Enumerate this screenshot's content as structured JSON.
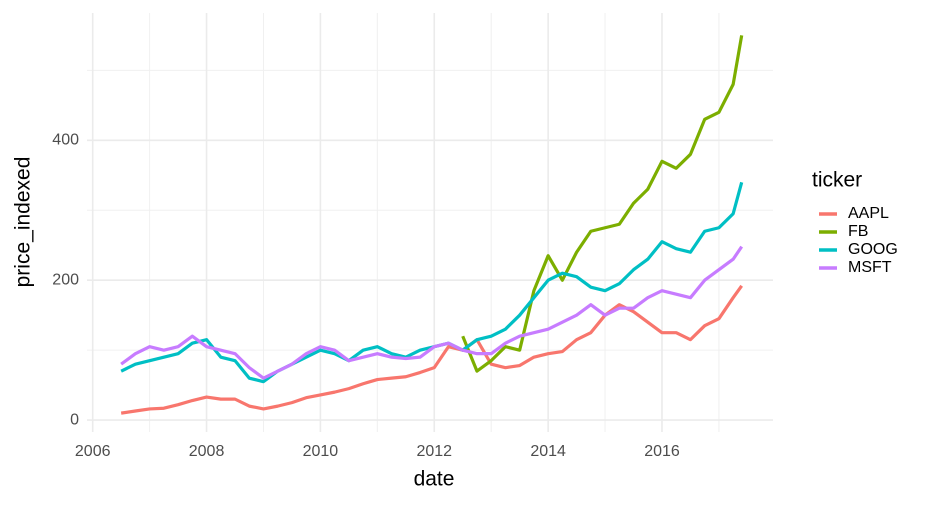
{
  "chart_data": {
    "type": "line",
    "x_label": "date",
    "y_label": "price_indexed",
    "legend_title": "ticker",
    "legend_position": "right",
    "grid": true,
    "x": [
      2006.5,
      2006.75,
      2007,
      2007.25,
      2007.5,
      2007.75,
      2008,
      2008.25,
      2008.5,
      2008.75,
      2009,
      2009.25,
      2009.5,
      2009.75,
      2010,
      2010.25,
      2010.5,
      2010.75,
      2011,
      2011.25,
      2011.5,
      2011.75,
      2012,
      2012.25,
      2012.5,
      2012.75,
      2013,
      2013.25,
      2013.5,
      2013.75,
      2014,
      2014.25,
      2014.5,
      2014.75,
      2015,
      2015.25,
      2015.5,
      2015.75,
      2016,
      2016.25,
      2016.5,
      2016.75,
      2017,
      2017.25,
      2017.4
    ],
    "xlim": [
      2005.9,
      2017.95
    ],
    "xticks": [
      2006,
      2008,
      2010,
      2012,
      2014,
      2016
    ],
    "ylim": [
      -17,
      582
    ],
    "yticks": [
      0,
      200,
      400
    ],
    "series": [
      {
        "name": "AAPL",
        "color": "#F8766D",
        "values": [
          10,
          13,
          16,
          17,
          22,
          28,
          33,
          30,
          30,
          20,
          16,
          20,
          25,
          32,
          36,
          40,
          45,
          52,
          58,
          60,
          62,
          68,
          75,
          105,
          100,
          115,
          80,
          75,
          78,
          90,
          95,
          98,
          115,
          125,
          150,
          165,
          155,
          140,
          125,
          125,
          115,
          135,
          145,
          175,
          192
        ]
      },
      {
        "name": "FB",
        "color": "#7CAE00",
        "values": [
          null,
          null,
          null,
          null,
          null,
          null,
          null,
          null,
          null,
          null,
          null,
          null,
          null,
          null,
          null,
          null,
          null,
          null,
          null,
          null,
          null,
          null,
          null,
          null,
          120,
          70,
          85,
          105,
          100,
          185,
          235,
          200,
          240,
          270,
          275,
          280,
          310,
          330,
          370,
          360,
          380,
          430,
          440,
          480,
          550
        ]
      },
      {
        "name": "GOOG",
        "color": "#00BFC4",
        "values": [
          70,
          80,
          85,
          90,
          95,
          110,
          115,
          90,
          85,
          60,
          55,
          70,
          80,
          90,
          100,
          95,
          85,
          100,
          105,
          95,
          90,
          100,
          105,
          110,
          100,
          115,
          120,
          130,
          150,
          175,
          200,
          210,
          205,
          190,
          185,
          195,
          215,
          230,
          255,
          245,
          240,
          270,
          275,
          295,
          340
        ]
      },
      {
        "name": "MSFT",
        "color": "#C77CFF",
        "values": [
          80,
          95,
          105,
          100,
          105,
          120,
          105,
          100,
          95,
          75,
          60,
          70,
          80,
          95,
          105,
          100,
          85,
          90,
          95,
          90,
          88,
          90,
          105,
          110,
          100,
          95,
          95,
          110,
          120,
          125,
          130,
          140,
          150,
          165,
          150,
          160,
          160,
          175,
          185,
          180,
          175,
          200,
          215,
          230,
          248
        ]
      }
    ]
  }
}
